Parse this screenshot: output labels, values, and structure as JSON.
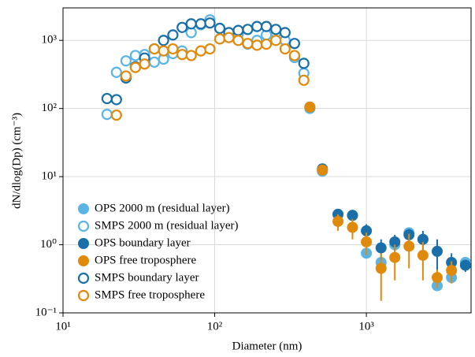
{
  "chart_data": {
    "type": "scatter",
    "x_label": "Diameter (nm)",
    "y_label": "dN/dlog(Dp) (cm⁻³)",
    "log_x": true,
    "log_y": true,
    "grid": true,
    "legend": "lower left",
    "xlim": [
      10,
      4900
    ],
    "ylim": [
      0.1,
      3000
    ],
    "xticks": [
      {
        "value": 10,
        "label": "10¹"
      },
      {
        "value": 100,
        "label": "10²"
      },
      {
        "value": 1000,
        "label": "10³"
      }
    ],
    "yticks": [
      {
        "value": 0.1,
        "label": "10⁻¹"
      },
      {
        "value": 1,
        "label": "10⁰"
      },
      {
        "value": 10,
        "label": "10¹"
      },
      {
        "value": 100,
        "label": "10²"
      },
      {
        "value": 1000,
        "label": "10³"
      }
    ],
    "series": [
      {
        "name": "OPS 2000 m (residual layer)",
        "color": "#5ab4e5",
        "filled": true,
        "x": [
          424,
          513,
          650,
          810,
          1000,
          1250,
          1540,
          1910,
          2360,
          2930,
          3640,
          4500
        ],
        "values": [
          100,
          12,
          2.8,
          2.7,
          0.75,
          0.55,
          1.0,
          1.5,
          1.2,
          0.25,
          0.33,
          0.55
        ]
      },
      {
        "name": "SMPS 2000 m (residual layer)",
        "color": "#5ab4e5",
        "filled": false,
        "x": [
          19.5,
          22.5,
          26,
          30,
          34.5,
          40,
          46,
          53,
          61,
          70,
          81,
          93,
          108,
          124,
          143,
          165,
          190,
          219,
          253,
          291,
          336,
          387
        ],
        "values": [
          82,
          340,
          500,
          600,
          620,
          480,
          530,
          640,
          700,
          1300,
          1700,
          2000,
          1500,
          1250,
          1250,
          880,
          1000,
          1200,
          1300,
          1000,
          560,
          330
        ]
      },
      {
        "name": "OPS boundary layer",
        "color": "#1a6fa8",
        "filled": true,
        "x": [
          424,
          513,
          650,
          810,
          1000,
          1250,
          1540,
          1910,
          2360,
          2930,
          3640,
          4500
        ],
        "values": [
          105,
          13,
          2.8,
          2.7,
          1.6,
          0.9,
          1.1,
          1.4,
          1.2,
          0.8,
          0.55,
          0.5
        ],
        "errors": [
          5,
          1,
          0.3,
          0.4,
          0.4,
          0.3,
          0.3,
          0.3,
          0.4,
          0.4,
          0.2,
          0.1
        ]
      },
      {
        "name": "OPS free troposphere",
        "color": "#e08a0b",
        "filled": true,
        "x": [
          424,
          513,
          650,
          810,
          1000,
          1250,
          1540,
          1910,
          2360,
          2930,
          3640
        ],
        "values": [
          105,
          12.5,
          2.2,
          1.8,
          1.1,
          0.45,
          0.65,
          0.95,
          0.7,
          0.33,
          0.42
        ],
        "errors": [
          5,
          1,
          0.6,
          0.6,
          0.4,
          0.3,
          0.35,
          0.5,
          0.4,
          0.1,
          0.15
        ]
      },
      {
        "name": "SMPS boundary layer",
        "color": "#1a6fa8",
        "filled": false,
        "x": [
          19.5,
          22.5,
          26,
          30,
          34.5,
          40,
          46,
          53,
          61,
          70,
          81,
          93,
          108,
          124,
          143,
          165,
          190,
          219,
          253,
          291,
          336,
          387
        ],
        "values": [
          140,
          135,
          280,
          410,
          550,
          750,
          1000,
          1200,
          1550,
          1750,
          1750,
          1800,
          1500,
          1300,
          1400,
          1450,
          1600,
          1600,
          1450,
          1300,
          900,
          460
        ]
      },
      {
        "name": "SMPS free troposphere",
        "color": "#e08a0b",
        "filled": false,
        "x": [
          22.5,
          26,
          30,
          34.5,
          40,
          46,
          53,
          61,
          70,
          81,
          93,
          108,
          124,
          143,
          165,
          190,
          219,
          253,
          291,
          336,
          387
        ],
        "values": [
          80,
          300,
          400,
          450,
          750,
          700,
          750,
          620,
          600,
          700,
          750,
          1050,
          1100,
          1000,
          900,
          850,
          880,
          1000,
          750,
          600,
          260
        ]
      }
    ]
  }
}
